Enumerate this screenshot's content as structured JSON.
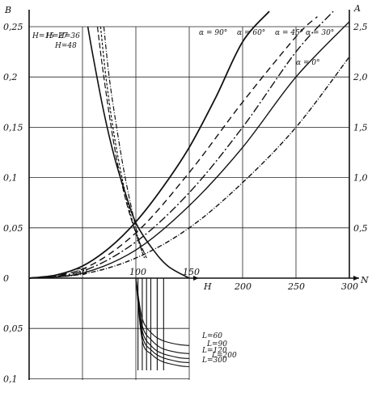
{
  "chart_data": {
    "type": "line",
    "axes": {
      "left_label": "B",
      "right_label": "A",
      "x_label_lower": "H",
      "x_label_upper": "N",
      "x_lower_ticks": [
        "50",
        "100",
        "150"
      ],
      "x_upper_ticks": [
        "200",
        "250",
        "300"
      ],
      "left_ticks_pos": [
        "0,25",
        "0,2",
        "0,15",
        "0,1",
        "0,05",
        "0"
      ],
      "left_ticks_neg": [
        "0,05",
        "0,1"
      ],
      "right_ticks": [
        "2,5",
        "2,0",
        "1,5",
        "1,0",
        "0,5"
      ],
      "xlim": [
        0,
        300
      ],
      "ylim_B": [
        -0.1,
        0.25
      ],
      "ylim_A": [
        0,
        2.5
      ],
      "grid": true
    },
    "alpha_series": [
      {
        "name": "α = 90°",
        "N": [
          0,
          25,
          50,
          75,
          100,
          125,
          150,
          175,
          200,
          225
        ],
        "A": [
          0,
          0.03,
          0.12,
          0.3,
          0.56,
          0.9,
          1.3,
          1.8,
          2.35,
          2.75
        ],
        "dash": "none",
        "width": 1.8
      },
      {
        "name": "α = 60°",
        "N": [
          0,
          50,
          100,
          150,
          200,
          250,
          270
        ],
        "A": [
          0,
          0.09,
          0.45,
          1.05,
          1.75,
          2.4,
          2.6
        ],
        "dash": "8 5",
        "width": 1.4
      },
      {
        "name": "α = 45°",
        "N": [
          0,
          50,
          100,
          150,
          200,
          250,
          285
        ],
        "A": [
          0,
          0.07,
          0.36,
          0.85,
          1.5,
          2.25,
          2.7
        ],
        "dash": "10 3 2 3",
        "width": 1.4
      },
      {
        "name": "α = 30°",
        "N": [
          0,
          50,
          100,
          150,
          200,
          250,
          300
        ],
        "A": [
          0,
          0.05,
          0.28,
          0.72,
          1.3,
          2.0,
          2.55
        ],
        "dash": "none",
        "width": 1.4
      },
      {
        "name": "α = 0°",
        "N": [
          0,
          50,
          100,
          150,
          200,
          250,
          300
        ],
        "A": [
          0,
          0.04,
          0.2,
          0.5,
          0.95,
          1.5,
          2.2
        ],
        "dash": "6 2 1 2",
        "width": 1.4
      }
    ],
    "H_series": [
      {
        "name": "H=15",
        "H": [
          55,
          60,
          70,
          80,
          90,
          100,
          115,
          130,
          150
        ],
        "B": [
          0.25,
          0.22,
          0.165,
          0.12,
          0.085,
          0.055,
          0.03,
          0.012,
          0
        ],
        "dash": "none"
      },
      {
        "name": "H=27",
        "H": [
          64,
          70,
          80,
          90,
          100,
          110
        ],
        "B": [
          0.25,
          0.2,
          0.13,
          0.08,
          0.045,
          0.02
        ],
        "dash": "7 3"
      },
      {
        "name": "H=36",
        "H": [
          67,
          72,
          80,
          90,
          100,
          108
        ],
        "B": [
          0.25,
          0.2,
          0.14,
          0.085,
          0.045,
          0.02
        ],
        "dash": "3 2"
      },
      {
        "name": "H=48",
        "H": [
          70,
          75,
          82,
          90,
          100,
          106
        ],
        "B": [
          0.25,
          0.2,
          0.15,
          0.1,
          0.05,
          0.025
        ],
        "dash": "6 2 1 2"
      }
    ],
    "L_series": [
      {
        "name": "L=60",
        "H": [
          100,
          106,
          115,
          125,
          140,
          150
        ],
        "B": [
          0,
          -0.04,
          -0.055,
          -0.062,
          -0.066,
          -0.067
        ]
      },
      {
        "name": "L=90",
        "H": [
          100,
          106,
          115,
          125,
          140,
          150
        ],
        "B": [
          0,
          -0.047,
          -0.062,
          -0.07,
          -0.074,
          -0.075
        ]
      },
      {
        "name": "L=120",
        "H": [
          100,
          106,
          115,
          125,
          140,
          150
        ],
        "B": [
          0,
          -0.052,
          -0.068,
          -0.075,
          -0.079,
          -0.08
        ]
      },
      {
        "name": "L=200",
        "H": [
          100,
          106,
          115,
          125,
          140,
          150
        ],
        "B": [
          0,
          -0.057,
          -0.072,
          -0.079,
          -0.083,
          -0.084
        ]
      },
      {
        "name": "L=300",
        "H": [
          100,
          106,
          115,
          125,
          140,
          150
        ],
        "B": [
          0,
          -0.062,
          -0.076,
          -0.083,
          -0.087,
          -0.088
        ]
      }
    ],
    "curve_labels": [
      {
        "text": "α = 90°"
      },
      {
        "text": "α = 60°"
      },
      {
        "text": "α = 45°"
      },
      {
        "text": "α = 30°"
      },
      {
        "text": "α = 0°"
      },
      {
        "text": "H=15"
      },
      {
        "text": "H=27"
      },
      {
        "text": "H=36"
      },
      {
        "text": "H=48"
      },
      {
        "text": "L=60"
      },
      {
        "text": "L=90"
      },
      {
        "text": "L=120"
      },
      {
        "text": "L=200"
      },
      {
        "text": "L=300"
      }
    ]
  }
}
